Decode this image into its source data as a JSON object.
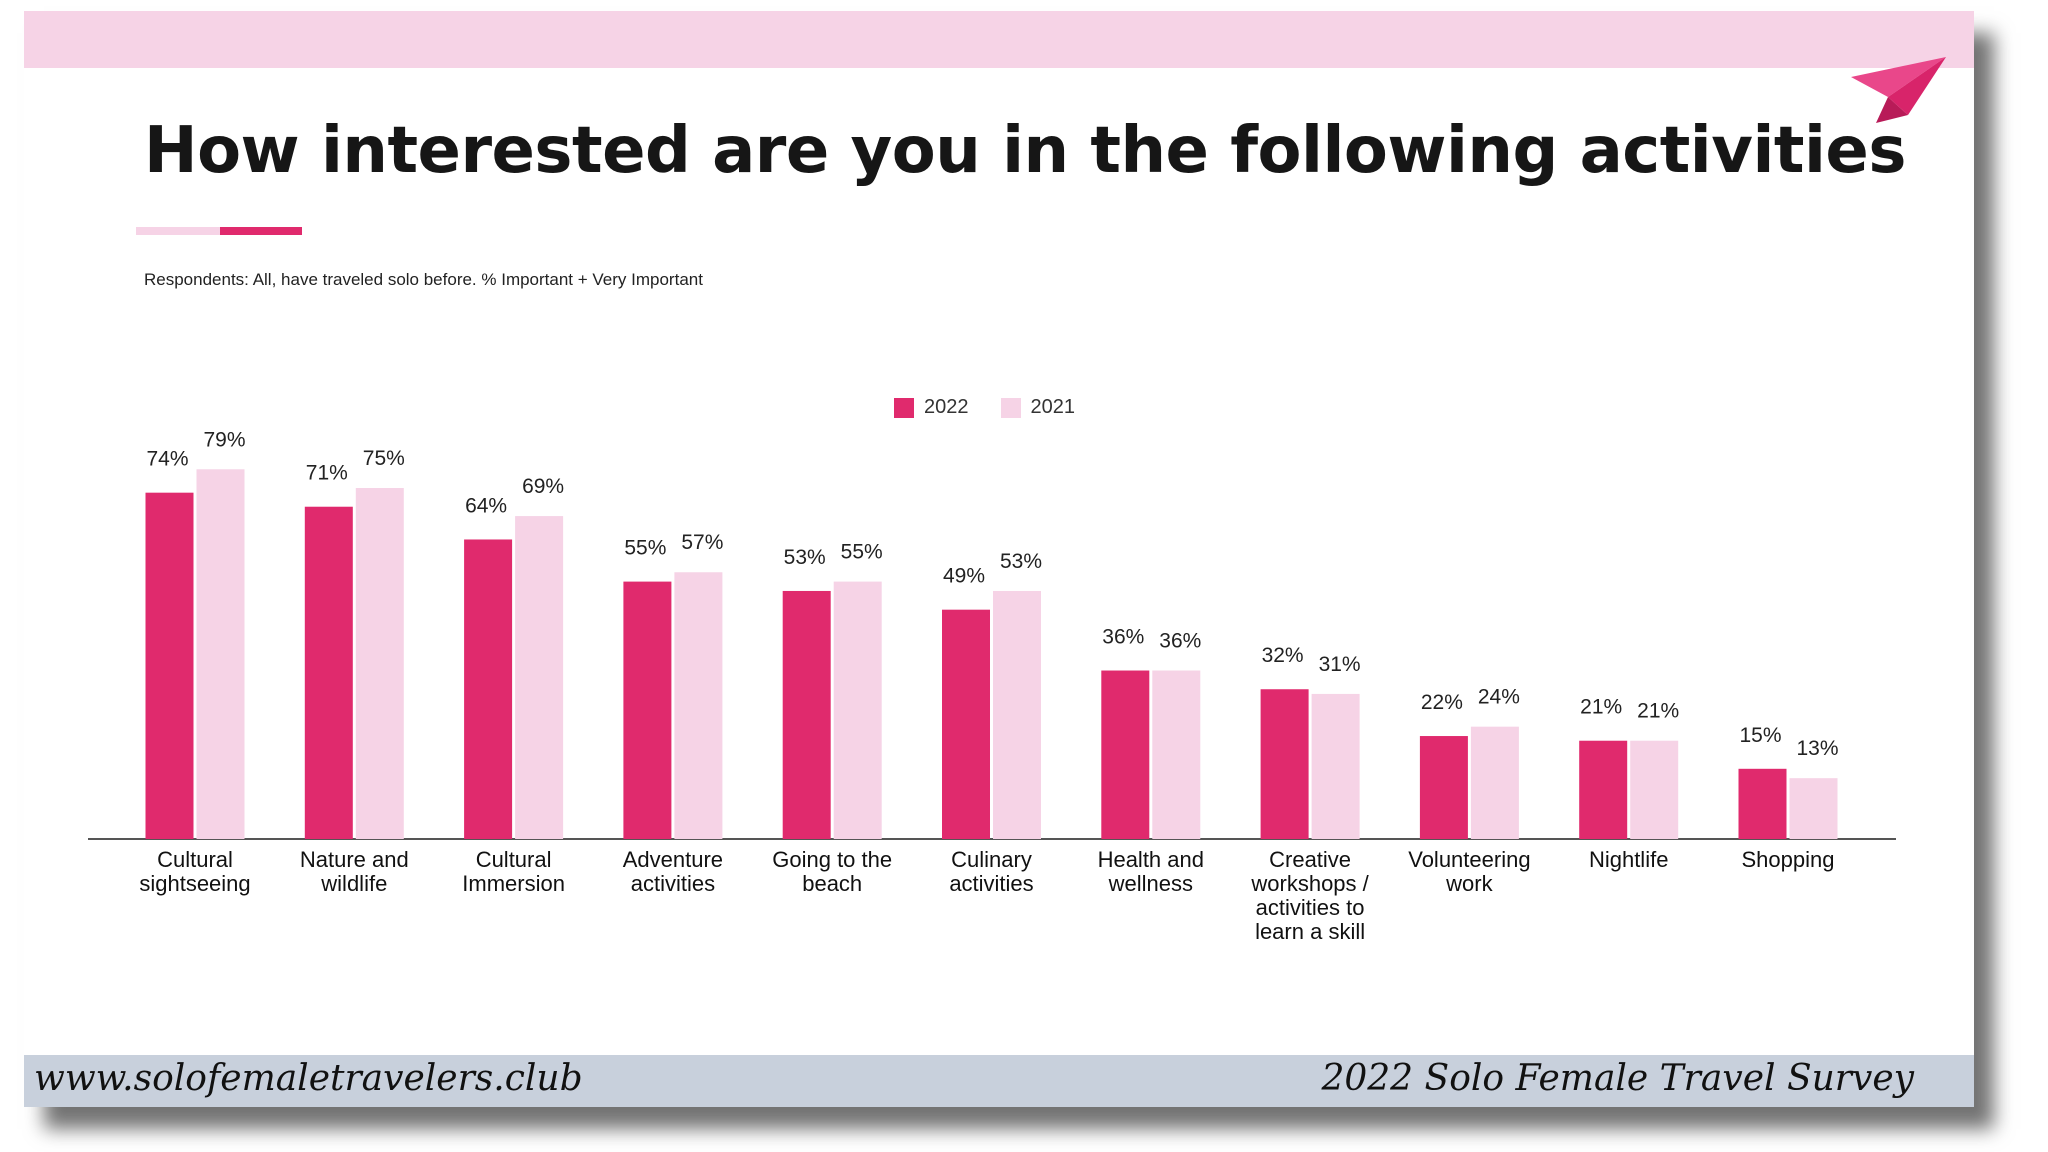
{
  "slide": {
    "title": "How interested are you in the following activities",
    "subtitle": "Respondents: All, have traveled solo before. % Important + Very Important",
    "footer_left": "www.solofemaletravelers.club",
    "footer_right": "2022 Solo Female Travel Survey",
    "icon": "paper-plane-icon"
  },
  "colors": {
    "series_2022": "#e02a6d",
    "series_2021": "#f6d3e6",
    "band": "#f6d3e6",
    "footer": "#c8d0dc"
  },
  "chart_data": {
    "type": "bar",
    "categories": [
      [
        "Cultural",
        "sightseeing"
      ],
      [
        "Nature and",
        "wildlife"
      ],
      [
        "Cultural",
        "Immersion"
      ],
      [
        "Adventure",
        "activities"
      ],
      [
        "Going to the",
        "beach"
      ],
      [
        "Culinary",
        "activities"
      ],
      [
        "Health and",
        "wellness"
      ],
      [
        "Creative",
        "workshops /",
        "activities to",
        "learn a skill"
      ],
      [
        "Volunteering",
        "work"
      ],
      [
        "Nightlife"
      ],
      [
        "Shopping"
      ]
    ],
    "series": [
      {
        "name": "2022",
        "values": [
          74,
          71,
          64,
          55,
          53,
          49,
          36,
          32,
          22,
          21,
          15
        ]
      },
      {
        "name": "2021",
        "values": [
          79,
          75,
          69,
          57,
          55,
          53,
          36,
          31,
          24,
          21,
          13
        ]
      }
    ],
    "value_suffix": "%",
    "ylim": [
      0,
      100
    ],
    "grid": false,
    "legend_position": "top-center"
  }
}
